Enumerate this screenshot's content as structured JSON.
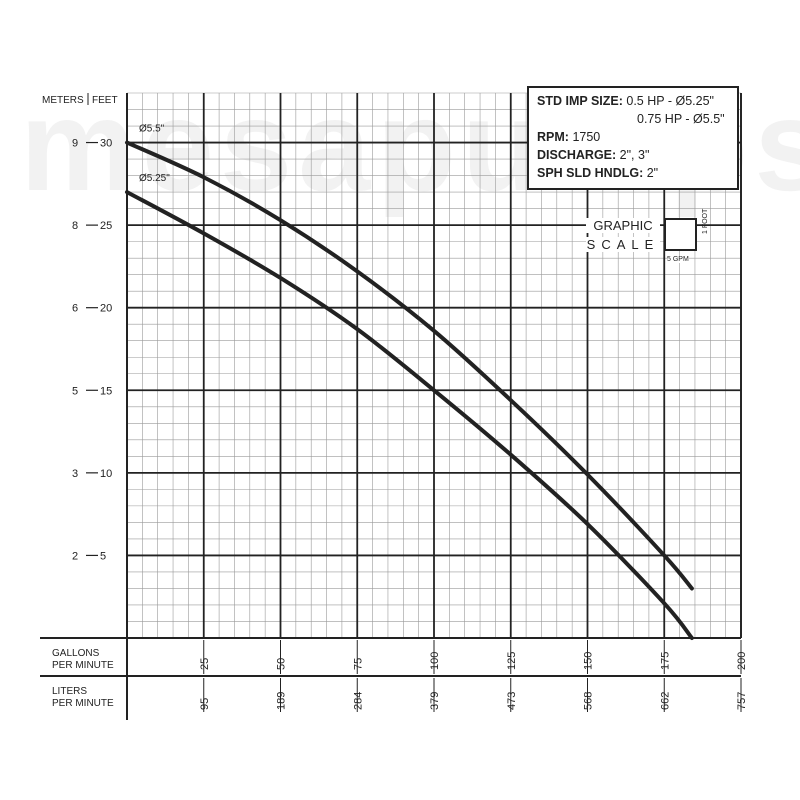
{
  "chart_data": {
    "type": "line",
    "watermark": "mesapumps",
    "y_axis": {
      "meters_title": "METERS",
      "feet_title": "FEET",
      "ylim_feet": [
        0,
        33
      ],
      "feet_ticks": [
        5,
        10,
        15,
        20,
        25,
        30
      ],
      "meters_labels": [
        "2",
        "3",
        "5",
        "6",
        "8",
        "9"
      ]
    },
    "x_axis": {
      "gpm_title": [
        "GALLONS",
        "PER MINUTE"
      ],
      "lpm_title": [
        "LITERS",
        "PER MINUTE"
      ],
      "xlim_gpm": [
        0,
        200
      ],
      "gpm_ticks": [
        25,
        50,
        75,
        100,
        125,
        150,
        175,
        200
      ],
      "lpm_labels": [
        "95",
        "189",
        "284",
        "379",
        "473",
        "568",
        "662",
        "757"
      ]
    },
    "series": [
      {
        "name": "Ø5.5\"",
        "x": [
          0,
          25,
          50,
          75,
          100,
          125,
          150,
          175,
          184
        ],
        "y": [
          30,
          27.9,
          25.3,
          22.2,
          18.6,
          14.4,
          9.9,
          5,
          3
        ]
      },
      {
        "name": "Ø5.25\"",
        "x": [
          0,
          25,
          50,
          75,
          100,
          125,
          150,
          175,
          184
        ],
        "y": [
          27,
          24.5,
          21.8,
          18.7,
          15,
          11.1,
          6.9,
          2.1,
          0
        ]
      }
    ]
  },
  "info": {
    "imp_label": "STD IMP SIZE:",
    "imp_value_1": "0.5 HP - Ø5.25\"",
    "imp_value_2": "0.75 HP - Ø5.5\"",
    "rpm_label": "RPM:",
    "rpm_value": "1750",
    "discharge_label": "DISCHARGE:",
    "discharge_value": "2\", 3\"",
    "solids_label": "SPH SLD HNDLG:",
    "solids_value": "2\""
  },
  "graphic_scale": {
    "title": "GRAPHIC",
    "subtitle": "SCALE",
    "x_unit": "5 GPM",
    "y_unit": "1 FOOT"
  }
}
